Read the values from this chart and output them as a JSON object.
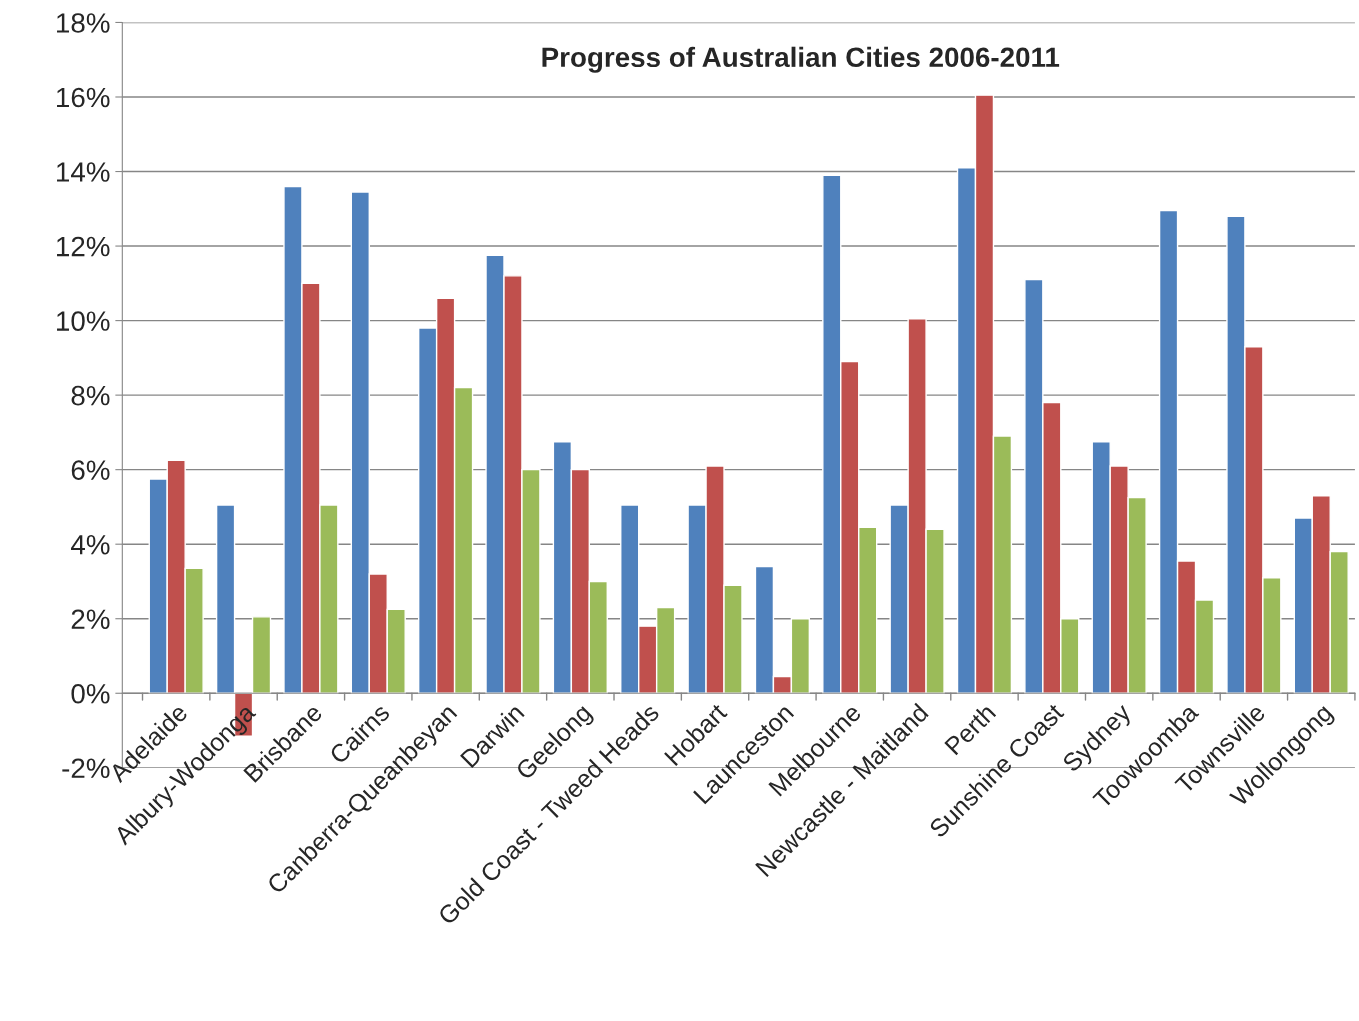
{
  "chart_data": {
    "type": "bar",
    "title": "Progress of Australian Cities 2006-2011",
    "categories": [
      "Adelaide",
      "Albury-Wodonga",
      "Brisbane",
      "Cairns",
      "Canberra-Queanbeyan",
      "Darwin",
      "Geelong",
      "Gold Coast - Tweed Heads",
      "Hobart",
      "Launceston",
      "Melbourne",
      "Newcastle - Maitland",
      "Perth",
      "Sunshine Coast",
      "Sydney",
      "Toowoomba",
      "Townsville",
      "Wollongong"
    ],
    "series": [
      {
        "color": "#4f81bd",
        "values": [
          5.75,
          5.05,
          13.6,
          13.45,
          9.8,
          11.75,
          6.75,
          5.05,
          5.05,
          3.4,
          13.9,
          5.05,
          14.1,
          11.1,
          6.75,
          12.95,
          12.8,
          4.7
        ]
      },
      {
        "color": "#c0504d",
        "values": [
          6.25,
          -1.15,
          11.0,
          3.2,
          10.6,
          11.2,
          6.0,
          1.8,
          6.1,
          0.45,
          8.9,
          10.05,
          16.05,
          7.8,
          6.1,
          3.55,
          9.3,
          5.3
        ]
      },
      {
        "color": "#9bbb59",
        "values": [
          3.35,
          2.05,
          5.05,
          2.25,
          8.2,
          6.0,
          3.0,
          2.3,
          2.9,
          2.0,
          4.45,
          4.4,
          6.9,
          2.0,
          5.25,
          2.5,
          3.1,
          3.8
        ]
      }
    ],
    "ylim": [
      -2,
      18
    ],
    "yticks": [
      {
        "value": -2,
        "label": "-2%"
      },
      {
        "value": 0,
        "label": "0%"
      },
      {
        "value": 2,
        "label": "2%"
      },
      {
        "value": 4,
        "label": "4%"
      },
      {
        "value": 6,
        "label": "6%"
      },
      {
        "value": 8,
        "label": "8%"
      },
      {
        "value": 10,
        "label": "10%"
      },
      {
        "value": 12,
        "label": "12%"
      },
      {
        "value": 14,
        "label": "14%"
      },
      {
        "value": 16,
        "label": "16%"
      },
      {
        "value": 18,
        "label": "18%"
      }
    ],
    "grid": "y",
    "legend": false
  }
}
